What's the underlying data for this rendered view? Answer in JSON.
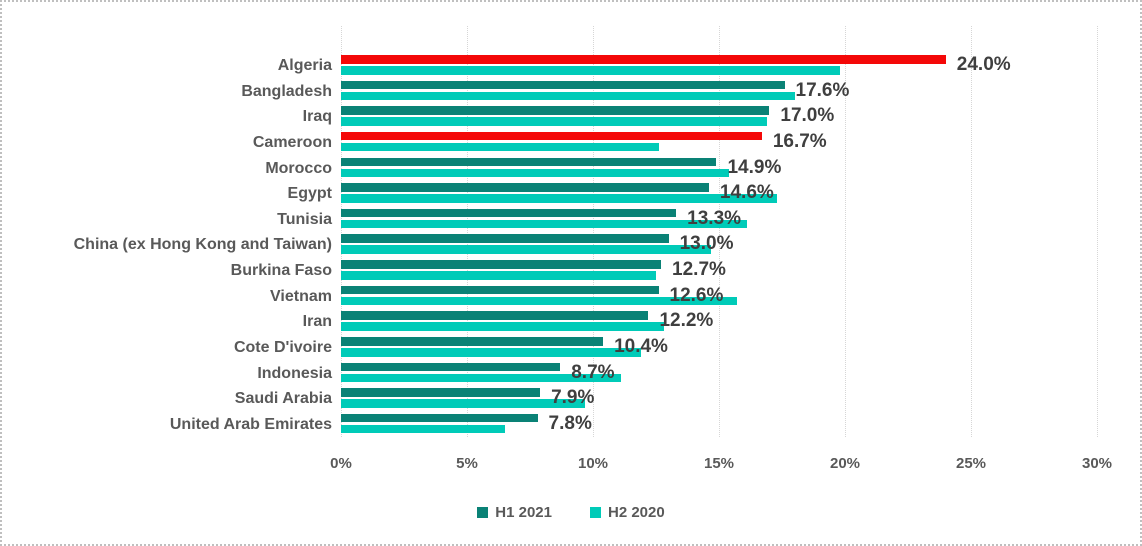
{
  "chart": {
    "background_color": "#FFFFFF",
    "frame_border_color": "#BFBFBF",
    "gridline_color": "#D6D6D6",
    "category_label_color": "#595959",
    "data_label_color": "#3F3F3F"
  },
  "chart_data": {
    "type": "bar",
    "orientation": "horizontal",
    "title": "",
    "xlabel": "",
    "ylabel": "",
    "xlim": [
      0,
      30
    ],
    "x_ticks": [
      {
        "value": 0,
        "label": "0%"
      },
      {
        "value": 5,
        "label": "5%"
      },
      {
        "value": 10,
        "label": "10%"
      },
      {
        "value": 15,
        "label": "15%"
      },
      {
        "value": 20,
        "label": "20%"
      },
      {
        "value": 25,
        "label": "25%"
      },
      {
        "value": 30,
        "label": "30%"
      }
    ],
    "gridlines": "vertical-dotted",
    "legend_position": "bottom-center",
    "categories": [
      "Algeria",
      "Bangladesh",
      "Iraq",
      "Cameroon",
      "Morocco",
      "Egypt",
      "Tunisia",
      "China (ex Hong Kong and Taiwan)",
      "Burkina Faso",
      "Vietnam",
      "Iran",
      "Cote D'ivoire",
      "Indonesia",
      "Saudi Arabia",
      "United Arab Emirates"
    ],
    "series": [
      {
        "name": "H1 2021",
        "color": "#0A8276",
        "values": [
          24.0,
          17.6,
          17.0,
          16.7,
          14.9,
          14.6,
          13.3,
          13.0,
          12.7,
          12.6,
          12.2,
          10.4,
          8.7,
          7.9,
          7.8
        ],
        "data_labels": [
          "24.0%",
          "17.6%",
          "17.0%",
          "16.7%",
          "14.9%",
          "14.6%",
          "13.3%",
          "13.0%",
          "12.7%",
          "12.6%",
          "12.2%",
          "10.4%",
          "8.7%",
          "7.9%",
          "7.8%"
        ]
      },
      {
        "name": "H2 2020",
        "color": "#00CBB8",
        "values": [
          19.8,
          18.0,
          16.9,
          12.6,
          15.4,
          17.3,
          16.1,
          14.7,
          12.5,
          15.7,
          12.8,
          11.9,
          11.1,
          9.7,
          6.5
        ]
      }
    ],
    "highlight": {
      "description": "H1 2021 bars drawn in red for these category indices",
      "color": "#F40808",
      "category_indices": [
        0,
        3
      ]
    }
  },
  "legend": {
    "items": [
      {
        "label": "H1 2021",
        "color": "#0A8276"
      },
      {
        "label": "H2 2020",
        "color": "#00CBB8"
      }
    ]
  }
}
